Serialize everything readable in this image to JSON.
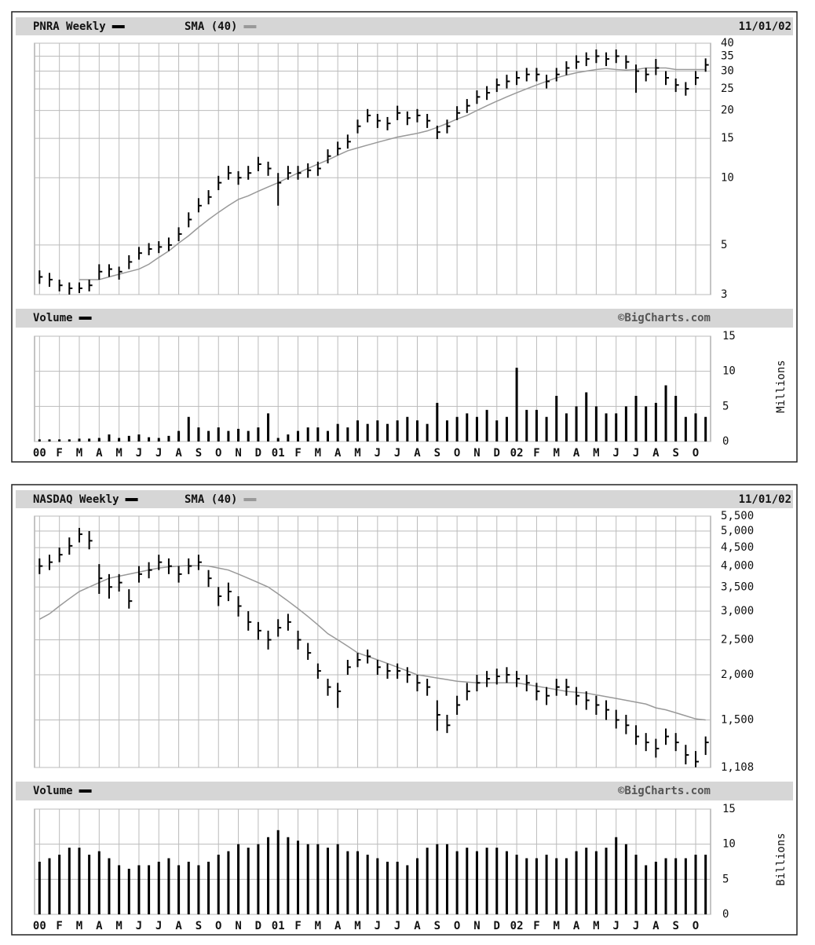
{
  "chart_data": [
    {
      "type": "ohlc",
      "date": "11/01/02",
      "categories": [
        "00",
        null,
        "F",
        null,
        "M",
        null,
        "A",
        null,
        "M",
        null,
        "J",
        null,
        "J",
        null,
        "A",
        null,
        "S",
        null,
        "O",
        null,
        "N",
        null,
        "D",
        null,
        "01",
        null,
        "F",
        null,
        "M",
        null,
        "A",
        null,
        "M",
        null,
        "J",
        null,
        "J",
        null,
        "A",
        null,
        "S",
        null,
        "O",
        null,
        "N",
        null,
        "D",
        null,
        "02",
        null,
        "F",
        null,
        "M",
        null,
        "A",
        null,
        "M",
        null,
        "J",
        null,
        "J",
        null,
        "A",
        null,
        "S",
        null,
        "O",
        null
      ],
      "series": [
        {
          "name": "PNRA Weekly",
          "color": "#000000",
          "high": [
            3.85,
            3.75,
            3.5,
            3.4,
            3.4,
            3.5,
            4.1,
            4.1,
            4.0,
            4.5,
            4.9,
            5.1,
            5.2,
            5.4,
            6.0,
            7.0,
            8.1,
            8.8,
            10.2,
            11.3,
            10.7,
            11.3,
            12.4,
            11.8,
            10.5,
            11.3,
            11.3,
            11.6,
            11.8,
            13.4,
            14.5,
            15.6,
            18.2,
            20.3,
            19.3,
            18.7,
            21,
            19.8,
            20.3,
            19.3,
            17.1,
            18.2,
            20.9,
            22.5,
            24.6,
            25.7,
            27.8,
            28.9,
            30,
            31,
            31,
            28.9,
            31,
            33.2,
            35.3,
            36.4,
            37.5,
            36.4,
            37.5,
            35.3,
            32.1,
            31,
            34,
            30,
            27.8,
            26.8,
            30,
            34.2
          ],
          "low": [
            3.35,
            3.25,
            3.1,
            3.0,
            3.05,
            3.1,
            3.5,
            3.6,
            3.5,
            3.9,
            4.3,
            4.5,
            4.6,
            4.7,
            5.2,
            6.0,
            7.0,
            7.6,
            8.8,
            9.8,
            9.3,
            9.8,
            10.7,
            10.2,
            7.5,
            9.8,
            9.8,
            10,
            10.2,
            11.6,
            12.6,
            13.5,
            15.8,
            17.7,
            16.7,
            16.3,
            18.1,
            17.2,
            17.7,
            16.7,
            14.9,
            15.8,
            18.1,
            19.5,
            21.4,
            22.3,
            24.2,
            25.1,
            26,
            27,
            27,
            25.1,
            27,
            28.8,
            30.7,
            31.6,
            32.6,
            31.6,
            32.6,
            30.7,
            24,
            27,
            28.8,
            26,
            24.2,
            23.3,
            26,
            29.8
          ],
          "close": [
            3.6,
            3.5,
            3.3,
            3.2,
            3.2,
            3.3,
            3.8,
            3.9,
            3.8,
            4.2,
            4.6,
            4.8,
            4.9,
            5.0,
            5.6,
            6.5,
            7.5,
            8.2,
            9.5,
            10.5,
            10,
            10.5,
            11.5,
            11,
            9.5,
            10.5,
            10.5,
            10.8,
            11,
            12.5,
            13.5,
            14.5,
            17,
            19,
            18,
            17.5,
            19.5,
            18.5,
            19,
            18,
            16,
            17,
            19.5,
            21,
            23,
            24,
            26,
            27,
            28,
            29,
            29,
            27,
            29,
            31,
            33,
            34,
            35,
            34,
            35,
            33,
            30,
            29,
            31,
            28,
            26,
            25,
            28,
            32
          ]
        },
        {
          "name": "SMA (40)",
          "color": "#999999",
          "values": [
            null,
            null,
            null,
            null,
            3.5,
            3.5,
            3.5,
            3.6,
            3.7,
            3.8,
            3.9,
            4.1,
            4.4,
            4.7,
            5.1,
            5.5,
            6.0,
            6.5,
            7.0,
            7.5,
            8.0,
            8.3,
            8.7,
            9.1,
            9.5,
            10.0,
            10.5,
            11.0,
            11.5,
            12.0,
            12.6,
            13.2,
            13.6,
            14.0,
            14.4,
            14.8,
            15.2,
            15.5,
            15.8,
            16.2,
            16.8,
            17.5,
            18.3,
            19.0,
            20.0,
            21.0,
            22.0,
            23.0,
            24.0,
            25.0,
            26.0,
            27.0,
            28.0,
            28.8,
            29.5,
            30.0,
            30.5,
            30.8,
            30.5,
            30.3,
            30.5,
            31.0,
            31.0,
            31.0,
            30.5,
            30.5,
            30.5,
            30.5
          ]
        }
      ],
      "ylim": [
        3,
        40
      ],
      "yticks": [
        3,
        5,
        10,
        15,
        20,
        25,
        30,
        35,
        40
      ],
      "log_scale": true,
      "grid": true,
      "volume": {
        "name": "Volume",
        "source": "©BigCharts.com",
        "unit": "Millions",
        "color": "#000000",
        "values": [
          0.3,
          0.3,
          0.3,
          0.3,
          0.4,
          0.4,
          0.5,
          1.0,
          0.5,
          0.8,
          1.0,
          0.6,
          0.5,
          0.8,
          1.5,
          3.5,
          2.0,
          1.5,
          2.0,
          1.5,
          1.8,
          1.5,
          2.0,
          4.0,
          0.5,
          1.0,
          1.5,
          2.0,
          2.0,
          1.5,
          2.5,
          2.0,
          3.0,
          2.5,
          3.0,
          2.5,
          3.0,
          3.5,
          3.0,
          2.5,
          5.5,
          3.0,
          3.5,
          4.0,
          3.5,
          4.5,
          3.0,
          3.5,
          10.5,
          4.5,
          4.5,
          3.5,
          6.5,
          4.0,
          5.0,
          7.0,
          5.0,
          4.0,
          4.0,
          5.0,
          6.5,
          5.0,
          5.5,
          8.0,
          6.5,
          3.5,
          4.0,
          3.5
        ],
        "ylim": [
          0,
          15
        ],
        "yticks": [
          0,
          5,
          10,
          15
        ]
      }
    },
    {
      "type": "ohlc",
      "date": "11/01/02",
      "categories": [
        "00",
        null,
        "F",
        null,
        "M",
        null,
        "A",
        null,
        "M",
        null,
        "J",
        null,
        "J",
        null,
        "A",
        null,
        "S",
        null,
        "O",
        null,
        "N",
        null,
        "D",
        null,
        "01",
        null,
        "F",
        null,
        "M",
        null,
        "A",
        null,
        "M",
        null,
        "J",
        null,
        "J",
        null,
        "A",
        null,
        "S",
        null,
        "O",
        null,
        "N",
        null,
        "D",
        null,
        "02",
        null,
        "F",
        null,
        "M",
        null,
        "A",
        null,
        "M",
        null,
        "J",
        null,
        "J",
        null,
        "A",
        null,
        "S",
        null,
        "O",
        null
      ],
      "series": [
        {
          "name": "NASDAQ Weekly",
          "color": "#000000",
          "high": [
            4200,
            4300,
            4500,
            4800,
            5100,
            5000,
            4050,
            3800,
            3800,
            3450,
            4000,
            4100,
            4300,
            4200,
            4000,
            4200,
            4300,
            3900,
            3500,
            3600,
            3300,
            3000,
            2800,
            2650,
            2850,
            2950,
            2650,
            2450,
            2150,
            1950,
            1900,
            2200,
            2300,
            2350,
            2200,
            2150,
            2150,
            2100,
            2000,
            1950,
            1700,
            1550,
            1750,
            1900,
            2000,
            2050,
            2080,
            2100,
            2050,
            2000,
            1900,
            1850,
            1950,
            1950,
            1850,
            1800,
            1750,
            1700,
            1600,
            1550,
            1450,
            1380,
            1330,
            1420,
            1380,
            1280,
            1230,
            1350
          ],
          "low": [
            3800,
            3900,
            4100,
            4300,
            4650,
            4450,
            3350,
            3250,
            3400,
            3050,
            3600,
            3700,
            3900,
            3800,
            3600,
            3800,
            3900,
            3500,
            3100,
            3200,
            2900,
            2650,
            2500,
            2350,
            2550,
            2650,
            2350,
            2200,
            1950,
            1750,
            1620,
            2000,
            2100,
            2150,
            2000,
            1950,
            1950,
            1900,
            1800,
            1750,
            1400,
            1380,
            1550,
            1700,
            1800,
            1850,
            1880,
            1900,
            1850,
            1800,
            1700,
            1650,
            1750,
            1750,
            1650,
            1600,
            1550,
            1500,
            1420,
            1370,
            1280,
            1230,
            1180,
            1280,
            1230,
            1130,
            1110,
            1200
          ],
          "close": [
            4000,
            4100,
            4300,
            4550,
            4900,
            4700,
            3700,
            3500,
            3600,
            3200,
            3800,
            3900,
            4100,
            4000,
            3800,
            4000,
            4100,
            3700,
            3300,
            3400,
            3100,
            2800,
            2650,
            2500,
            2700,
            2800,
            2500,
            2300,
            2050,
            1850,
            1800,
            2100,
            2200,
            2250,
            2100,
            2050,
            2050,
            2000,
            1900,
            1850,
            1550,
            1450,
            1650,
            1800,
            1900,
            1950,
            1980,
            2000,
            1950,
            1900,
            1800,
            1750,
            1850,
            1850,
            1750,
            1700,
            1650,
            1600,
            1500,
            1450,
            1350,
            1300,
            1250,
            1350,
            1300,
            1200,
            1150,
            1300
          ]
        },
        {
          "name": "SMA (40)",
          "color": "#999999",
          "values": [
            2850,
            2950,
            3100,
            3250,
            3400,
            3500,
            3600,
            3700,
            3750,
            3800,
            3850,
            3900,
            3950,
            3980,
            4000,
            4010,
            4010,
            4000,
            3950,
            3900,
            3800,
            3700,
            3600,
            3500,
            3350,
            3200,
            3050,
            2900,
            2750,
            2600,
            2500,
            2400,
            2300,
            2250,
            2200,
            2150,
            2100,
            2050,
            2000,
            1980,
            1960,
            1940,
            1920,
            1910,
            1900,
            1900,
            1900,
            1900,
            1900,
            1880,
            1860,
            1840,
            1820,
            1800,
            1790,
            1780,
            1760,
            1740,
            1720,
            1700,
            1680,
            1660,
            1620,
            1600,
            1570,
            1540,
            1510,
            1500
          ]
        }
      ],
      "ylim": [
        1108,
        5500
      ],
      "yticks": [
        {
          "value": 1108,
          "label": "1,108"
        },
        {
          "value": 1500,
          "label": "1,500"
        },
        {
          "value": 2000,
          "label": "2,000"
        },
        {
          "value": 2500,
          "label": "2,500"
        },
        {
          "value": 3000,
          "label": "3,000"
        },
        {
          "value": 3500,
          "label": "3,500"
        },
        {
          "value": 4000,
          "label": "4,000"
        },
        {
          "value": 4500,
          "label": "4,500"
        },
        {
          "value": 5000,
          "label": "5,000"
        },
        {
          "value": 5500,
          "label": "5,500"
        }
      ],
      "log_scale": true,
      "grid": true,
      "volume": {
        "name": "Volume",
        "source": "©BigCharts.com",
        "unit": "Billions",
        "color": "#000000",
        "values": [
          7.5,
          8,
          8.5,
          9.5,
          9.5,
          8.5,
          9,
          8,
          7,
          6.5,
          7,
          7,
          7.5,
          8,
          7,
          7.5,
          7,
          7.5,
          8.5,
          9,
          10,
          9.5,
          10,
          11,
          12,
          11,
          10.5,
          10,
          10,
          9.5,
          10,
          9,
          9,
          8.5,
          8,
          7.5,
          7.5,
          7,
          8,
          9.5,
          10,
          10,
          9,
          9.5,
          9,
          9.5,
          9.5,
          9,
          8.5,
          8,
          8,
          8.5,
          8,
          8,
          9,
          9.5,
          9,
          9.5,
          11,
          10,
          8.5,
          7,
          7.5,
          8,
          8,
          8,
          8.5,
          8.5
        ],
        "ylim": [
          0,
          15
        ],
        "yticks": [
          0,
          5,
          10,
          15
        ]
      }
    }
  ]
}
